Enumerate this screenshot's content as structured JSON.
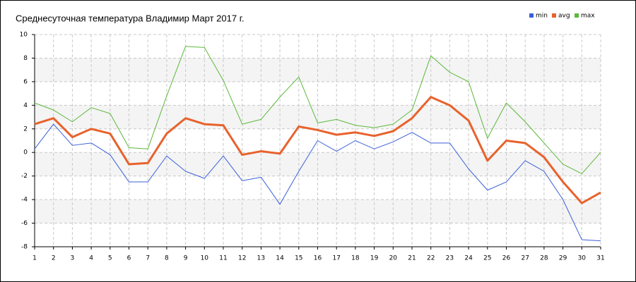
{
  "chart_data": {
    "type": "line",
    "title": "Среднесуточная температура Владимир  Март 2017 г.",
    "x": [
      1,
      2,
      3,
      4,
      5,
      6,
      7,
      8,
      9,
      10,
      11,
      12,
      13,
      14,
      15,
      16,
      17,
      18,
      19,
      20,
      21,
      22,
      23,
      24,
      25,
      26,
      27,
      28,
      29,
      30,
      31
    ],
    "series": [
      {
        "name": "min",
        "color": "#3a5fd9",
        "width": 1,
        "values": [
          0.3,
          2.4,
          0.6,
          0.8,
          -0.2,
          -2.5,
          -2.5,
          -0.3,
          -1.6,
          -2.2,
          -0.3,
          -2.4,
          -2.1,
          -4.4,
          -1.6,
          1.0,
          0.1,
          1.0,
          0.3,
          0.9,
          1.7,
          0.8,
          0.8,
          -1.4,
          -3.2,
          -2.5,
          -0.7,
          -1.6,
          -4.0,
          -7.4,
          -7.5
        ]
      },
      {
        "name": "avg",
        "color": "#e8622c",
        "width": 3,
        "values": [
          2.4,
          2.9,
          1.3,
          2.0,
          1.6,
          -1.0,
          -0.9,
          1.6,
          2.9,
          2.4,
          2.3,
          -0.2,
          0.1,
          -0.1,
          2.2,
          1.9,
          1.5,
          1.7,
          1.4,
          1.8,
          2.9,
          4.7,
          4.0,
          2.7,
          -0.7,
          1.0,
          0.8,
          -0.4,
          -2.5,
          -4.3,
          -3.4
        ]
      },
      {
        "name": "max",
        "color": "#5cb83a",
        "width": 1,
        "values": [
          4.2,
          3.6,
          2.6,
          3.8,
          3.3,
          0.4,
          0.3,
          4.8,
          9.0,
          8.9,
          6.1,
          2.4,
          2.8,
          4.7,
          6.4,
          2.5,
          2.8,
          2.3,
          2.1,
          2.4,
          3.6,
          8.2,
          6.8,
          6.0,
          1.2,
          4.2,
          2.6,
          0.8,
          -1.0,
          -1.8,
          0.0
        ]
      }
    ],
    "xlim": [
      1,
      31
    ],
    "xticks": [
      1,
      2,
      3,
      4,
      5,
      6,
      7,
      8,
      9,
      10,
      11,
      12,
      13,
      14,
      15,
      16,
      17,
      18,
      19,
      20,
      21,
      22,
      23,
      24,
      25,
      26,
      27,
      28,
      29,
      30,
      31
    ],
    "ylim": [
      -8,
      10
    ],
    "yticks": [
      -8,
      -6,
      -4,
      -2,
      0,
      2,
      4,
      6,
      8,
      10
    ],
    "grid": true,
    "legend": "top-right"
  }
}
